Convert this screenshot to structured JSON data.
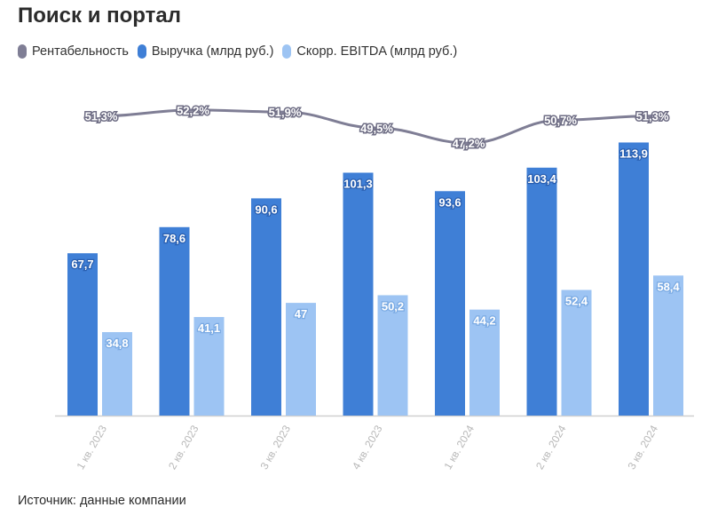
{
  "title": "Поиск и портал",
  "source": "Источник: данные компании",
  "colors": {
    "revenue": "#3f7fd6",
    "ebitda": "#9dc4f3",
    "margin": "#7f7e95",
    "axis": "#d0d0d0",
    "tick": "#b8b8b8"
  },
  "chart_data": {
    "type": "bar",
    "categories": [
      "1 кв. 2023",
      "2 кв. 2023",
      "3 кв. 2023",
      "4 кв. 2023",
      "1 кв. 2024",
      "2 кв. 2024",
      "3 кв. 2024"
    ],
    "series": [
      {
        "name": "Выручка (млрд руб.)",
        "type": "bar",
        "values": [
          67.7,
          78.6,
          90.6,
          101.3,
          93.6,
          103.4,
          113.9
        ],
        "labels": [
          "67,7",
          "78,6",
          "90,6",
          "101,3",
          "93,6",
          "103,4",
          "113,9"
        ]
      },
      {
        "name": "Скорр. EBITDA (млрд руб.)",
        "type": "bar",
        "values": [
          34.8,
          41.1,
          47,
          50.2,
          44.2,
          52.4,
          58.4
        ],
        "labels": [
          "34,8",
          "41,1",
          "47",
          "50,2",
          "44,2",
          "52,4",
          "58,4"
        ]
      },
      {
        "name": "Рентабельность",
        "type": "line",
        "values": [
          51.3,
          52.2,
          51.9,
          49.5,
          47.2,
          50.7,
          51.3
        ],
        "labels": [
          "51,3%",
          "52,2%",
          "51,9%",
          "49,5%",
          "47,2%",
          "50,7%",
          "51,3%"
        ]
      }
    ],
    "ylim": [
      0,
      115
    ],
    "margin_ylim": [
      40,
      55
    ],
    "legend_position": "top-left",
    "grid": false
  }
}
